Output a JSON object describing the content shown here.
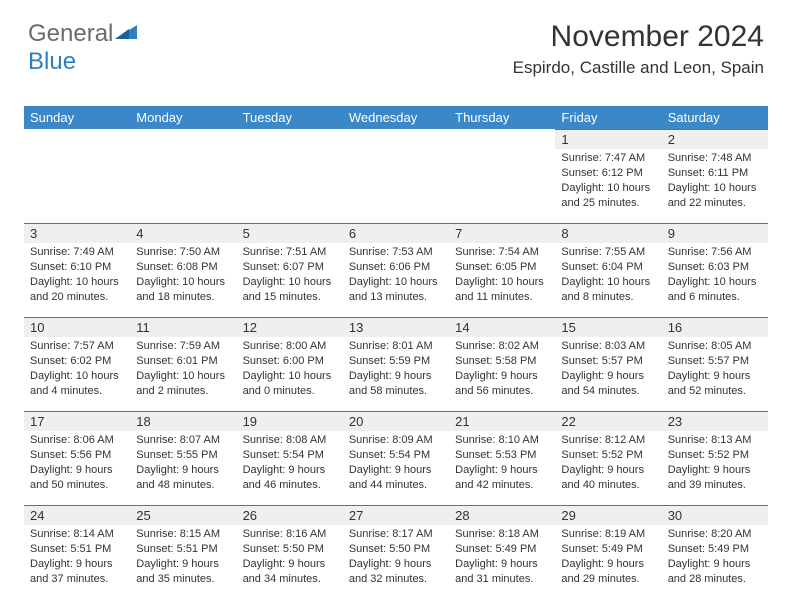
{
  "brand": {
    "part1": "General",
    "part2": "Blue"
  },
  "title": "November 2024",
  "location": "Espirdo, Castille and Leon, Spain",
  "colors": {
    "headerbg": "#3b87c8",
    "rowband": "#efefef",
    "border": "#2f7fbf"
  },
  "weekdays": [
    "Sunday",
    "Monday",
    "Tuesday",
    "Wednesday",
    "Thursday",
    "Friday",
    "Saturday"
  ],
  "cells": [
    {
      "n": "",
      "sr": "",
      "ss": "",
      "dl": ""
    },
    {
      "n": "",
      "sr": "",
      "ss": "",
      "dl": ""
    },
    {
      "n": "",
      "sr": "",
      "ss": "",
      "dl": ""
    },
    {
      "n": "",
      "sr": "",
      "ss": "",
      "dl": ""
    },
    {
      "n": "",
      "sr": "",
      "ss": "",
      "dl": ""
    },
    {
      "n": "1",
      "sr": "Sunrise: 7:47 AM",
      "ss": "Sunset: 6:12 PM",
      "dl": "Daylight: 10 hours and 25 minutes."
    },
    {
      "n": "2",
      "sr": "Sunrise: 7:48 AM",
      "ss": "Sunset: 6:11 PM",
      "dl": "Daylight: 10 hours and 22 minutes."
    },
    {
      "n": "3",
      "sr": "Sunrise: 7:49 AM",
      "ss": "Sunset: 6:10 PM",
      "dl": "Daylight: 10 hours and 20 minutes."
    },
    {
      "n": "4",
      "sr": "Sunrise: 7:50 AM",
      "ss": "Sunset: 6:08 PM",
      "dl": "Daylight: 10 hours and 18 minutes."
    },
    {
      "n": "5",
      "sr": "Sunrise: 7:51 AM",
      "ss": "Sunset: 6:07 PM",
      "dl": "Daylight: 10 hours and 15 minutes."
    },
    {
      "n": "6",
      "sr": "Sunrise: 7:53 AM",
      "ss": "Sunset: 6:06 PM",
      "dl": "Daylight: 10 hours and 13 minutes."
    },
    {
      "n": "7",
      "sr": "Sunrise: 7:54 AM",
      "ss": "Sunset: 6:05 PM",
      "dl": "Daylight: 10 hours and 11 minutes."
    },
    {
      "n": "8",
      "sr": "Sunrise: 7:55 AM",
      "ss": "Sunset: 6:04 PM",
      "dl": "Daylight: 10 hours and 8 minutes."
    },
    {
      "n": "9",
      "sr": "Sunrise: 7:56 AM",
      "ss": "Sunset: 6:03 PM",
      "dl": "Daylight: 10 hours and 6 minutes."
    },
    {
      "n": "10",
      "sr": "Sunrise: 7:57 AM",
      "ss": "Sunset: 6:02 PM",
      "dl": "Daylight: 10 hours and 4 minutes."
    },
    {
      "n": "11",
      "sr": "Sunrise: 7:59 AM",
      "ss": "Sunset: 6:01 PM",
      "dl": "Daylight: 10 hours and 2 minutes."
    },
    {
      "n": "12",
      "sr": "Sunrise: 8:00 AM",
      "ss": "Sunset: 6:00 PM",
      "dl": "Daylight: 10 hours and 0 minutes."
    },
    {
      "n": "13",
      "sr": "Sunrise: 8:01 AM",
      "ss": "Sunset: 5:59 PM",
      "dl": "Daylight: 9 hours and 58 minutes."
    },
    {
      "n": "14",
      "sr": "Sunrise: 8:02 AM",
      "ss": "Sunset: 5:58 PM",
      "dl": "Daylight: 9 hours and 56 minutes."
    },
    {
      "n": "15",
      "sr": "Sunrise: 8:03 AM",
      "ss": "Sunset: 5:57 PM",
      "dl": "Daylight: 9 hours and 54 minutes."
    },
    {
      "n": "16",
      "sr": "Sunrise: 8:05 AM",
      "ss": "Sunset: 5:57 PM",
      "dl": "Daylight: 9 hours and 52 minutes."
    },
    {
      "n": "17",
      "sr": "Sunrise: 8:06 AM",
      "ss": "Sunset: 5:56 PM",
      "dl": "Daylight: 9 hours and 50 minutes."
    },
    {
      "n": "18",
      "sr": "Sunrise: 8:07 AM",
      "ss": "Sunset: 5:55 PM",
      "dl": "Daylight: 9 hours and 48 minutes."
    },
    {
      "n": "19",
      "sr": "Sunrise: 8:08 AM",
      "ss": "Sunset: 5:54 PM",
      "dl": "Daylight: 9 hours and 46 minutes."
    },
    {
      "n": "20",
      "sr": "Sunrise: 8:09 AM",
      "ss": "Sunset: 5:54 PM",
      "dl": "Daylight: 9 hours and 44 minutes."
    },
    {
      "n": "21",
      "sr": "Sunrise: 8:10 AM",
      "ss": "Sunset: 5:53 PM",
      "dl": "Daylight: 9 hours and 42 minutes."
    },
    {
      "n": "22",
      "sr": "Sunrise: 8:12 AM",
      "ss": "Sunset: 5:52 PM",
      "dl": "Daylight: 9 hours and 40 minutes."
    },
    {
      "n": "23",
      "sr": "Sunrise: 8:13 AM",
      "ss": "Sunset: 5:52 PM",
      "dl": "Daylight: 9 hours and 39 minutes."
    },
    {
      "n": "24",
      "sr": "Sunrise: 8:14 AM",
      "ss": "Sunset: 5:51 PM",
      "dl": "Daylight: 9 hours and 37 minutes."
    },
    {
      "n": "25",
      "sr": "Sunrise: 8:15 AM",
      "ss": "Sunset: 5:51 PM",
      "dl": "Daylight: 9 hours and 35 minutes."
    },
    {
      "n": "26",
      "sr": "Sunrise: 8:16 AM",
      "ss": "Sunset: 5:50 PM",
      "dl": "Daylight: 9 hours and 34 minutes."
    },
    {
      "n": "27",
      "sr": "Sunrise: 8:17 AM",
      "ss": "Sunset: 5:50 PM",
      "dl": "Daylight: 9 hours and 32 minutes."
    },
    {
      "n": "28",
      "sr": "Sunrise: 8:18 AM",
      "ss": "Sunset: 5:49 PM",
      "dl": "Daylight: 9 hours and 31 minutes."
    },
    {
      "n": "29",
      "sr": "Sunrise: 8:19 AM",
      "ss": "Sunset: 5:49 PM",
      "dl": "Daylight: 9 hours and 29 minutes."
    },
    {
      "n": "30",
      "sr": "Sunrise: 8:20 AM",
      "ss": "Sunset: 5:49 PM",
      "dl": "Daylight: 9 hours and 28 minutes."
    }
  ]
}
